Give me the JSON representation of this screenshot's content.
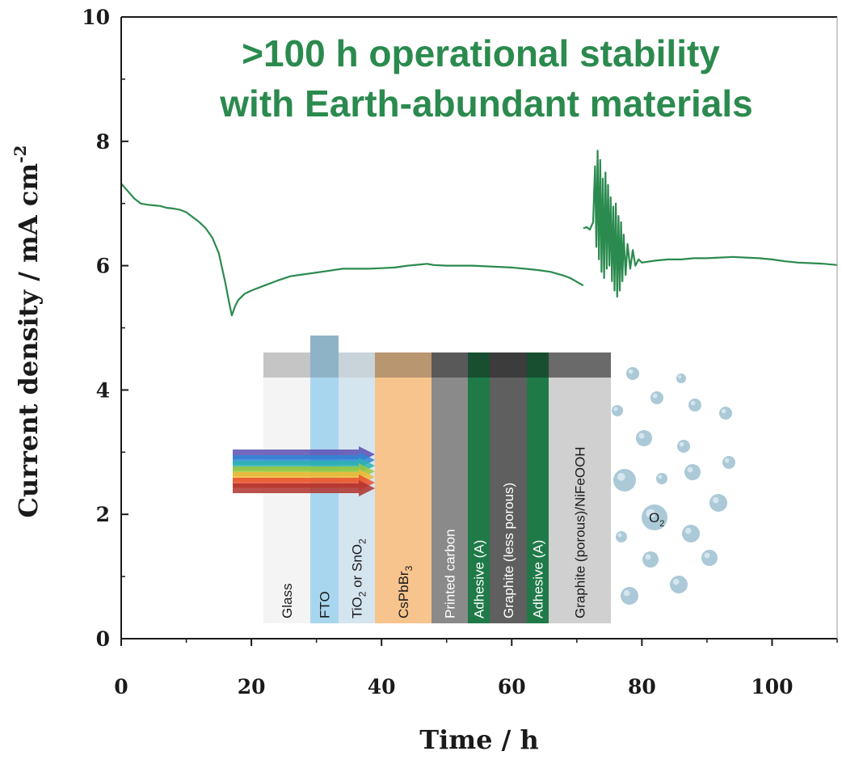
{
  "chart_data": {
    "type": "line",
    "title_lines": [
      ">100 h operational stability",
      "with Earth-abundant materials"
    ],
    "xlabel": "Time / h",
    "ylabel_main": "Current density / mA cm",
    "ylabel_sup": "-2",
    "xlim": [
      0,
      110
    ],
    "ylim": [
      0,
      10
    ],
    "x_ticks": [
      "0",
      "20",
      "40",
      "60",
      "80",
      "100"
    ],
    "y_ticks": [
      "0",
      "2",
      "4",
      "6",
      "8",
      "10"
    ],
    "grid": false,
    "series": [
      {
        "color": "#2b8a4e",
        "segments": [
          [
            [
              0,
              7.32
            ],
            [
              1,
              7.2
            ],
            [
              2,
              7.08
            ],
            [
              3,
              7.0
            ],
            [
              4,
              6.98
            ],
            [
              5,
              6.97
            ],
            [
              6,
              6.96
            ],
            [
              7,
              6.93
            ],
            [
              8,
              6.92
            ],
            [
              9,
              6.9
            ],
            [
              10,
              6.86
            ],
            [
              11,
              6.78
            ],
            [
              12,
              6.7
            ],
            [
              13,
              6.6
            ],
            [
              14,
              6.45
            ],
            [
              15,
              6.2
            ],
            [
              16,
              5.72
            ],
            [
              16.5,
              5.45
            ],
            [
              17,
              5.2
            ],
            [
              17.5,
              5.35
            ],
            [
              18,
              5.45
            ],
            [
              19,
              5.55
            ],
            [
              20,
              5.6
            ],
            [
              22,
              5.68
            ],
            [
              24,
              5.76
            ],
            [
              26,
              5.83
            ],
            [
              28,
              5.86
            ],
            [
              30,
              5.89
            ],
            [
              32,
              5.92
            ],
            [
              34,
              5.95
            ],
            [
              36,
              5.95
            ],
            [
              38,
              5.95
            ],
            [
              40,
              5.96
            ],
            [
              42,
              5.97
            ],
            [
              44,
              6.0
            ],
            [
              46,
              6.02
            ],
            [
              47,
              6.03
            ],
            [
              48,
              6.01
            ],
            [
              50,
              6.0
            ],
            [
              52,
              6.0
            ],
            [
              54,
              6.0
            ],
            [
              56,
              5.99
            ],
            [
              58,
              5.98
            ],
            [
              60,
              5.97
            ],
            [
              62,
              5.95
            ],
            [
              64,
              5.93
            ],
            [
              66,
              5.9
            ],
            [
              68,
              5.84
            ],
            [
              69,
              5.8
            ],
            [
              70,
              5.74
            ],
            [
              71,
              5.68
            ]
          ],
          [
            [
              71,
              6.6
            ],
            [
              71.5,
              6.62
            ],
            [
              72,
              6.58
            ],
            [
              72.5,
              6.7
            ],
            [
              72.8,
              7.6
            ],
            [
              73.0,
              6.3
            ],
            [
              73.2,
              7.85
            ],
            [
              73.4,
              6.1
            ],
            [
              73.6,
              7.7
            ],
            [
              73.8,
              5.9
            ],
            [
              74.0,
              7.4
            ],
            [
              74.2,
              5.8
            ],
            [
              74.4,
              7.5
            ],
            [
              74.6,
              5.95
            ],
            [
              74.8,
              7.3
            ],
            [
              75.0,
              6.0
            ],
            [
              75.2,
              7.1
            ],
            [
              75.4,
              5.75
            ],
            [
              75.6,
              6.95
            ],
            [
              75.8,
              5.6
            ],
            [
              76.0,
              7.0
            ],
            [
              76.2,
              5.5
            ],
            [
              76.4,
              6.8
            ],
            [
              76.6,
              5.6
            ],
            [
              76.8,
              6.7
            ],
            [
              77.0,
              5.75
            ],
            [
              77.2,
              6.5
            ],
            [
              77.5,
              5.85
            ],
            [
              77.8,
              6.35
            ],
            [
              78.2,
              5.95
            ],
            [
              78.6,
              6.25
            ],
            [
              79.0,
              6.0
            ],
            [
              79.5,
              6.1
            ],
            [
              80,
              6.05
            ],
            [
              82,
              6.08
            ],
            [
              84,
              6.1
            ],
            [
              86,
              6.1
            ],
            [
              88,
              6.12
            ],
            [
              90,
              6.12
            ],
            [
              92,
              6.13
            ],
            [
              94,
              6.14
            ],
            [
              96,
              6.13
            ],
            [
              98,
              6.12
            ],
            [
              100,
              6.1
            ],
            [
              102,
              6.07
            ],
            [
              104,
              6.05
            ],
            [
              106,
              6.04
            ],
            [
              108,
              6.03
            ],
            [
              110,
              6.01
            ]
          ]
        ]
      }
    ],
    "inset": {
      "layers": [
        {
          "label": "Glass",
          "color": "#f4f4f4"
        },
        {
          "label": "FTO",
          "color": "#a9d6ef"
        },
        {
          "label": "TiO",
          "sub": "2",
          "label_mid": " or SnO",
          "sub2": "2",
          "color": "#d5e5ef"
        },
        {
          "label": "CsPbBr",
          "sub": "3",
          "color": "#f7c48e"
        },
        {
          "label": "Printed carbon",
          "color": "#8a8a8a"
        },
        {
          "label": "Adhesive (A)",
          "color": "#1f7a48"
        },
        {
          "label": "Graphite (less porous)",
          "color": "#5f5f5f"
        },
        {
          "label": "Adhesive (A)",
          "color": "#1f7a48"
        },
        {
          "label": "Graphite (porous)/NiFeOOH",
          "color": "#d0d0d0"
        }
      ],
      "bubble_label": "O",
      "bubble_label_sub": "2",
      "light_colors": [
        "#5a4fb3",
        "#2f86d6",
        "#2bb3b0",
        "#9bc83a",
        "#f2b83a",
        "#e8502f",
        "#b0312c"
      ]
    }
  }
}
